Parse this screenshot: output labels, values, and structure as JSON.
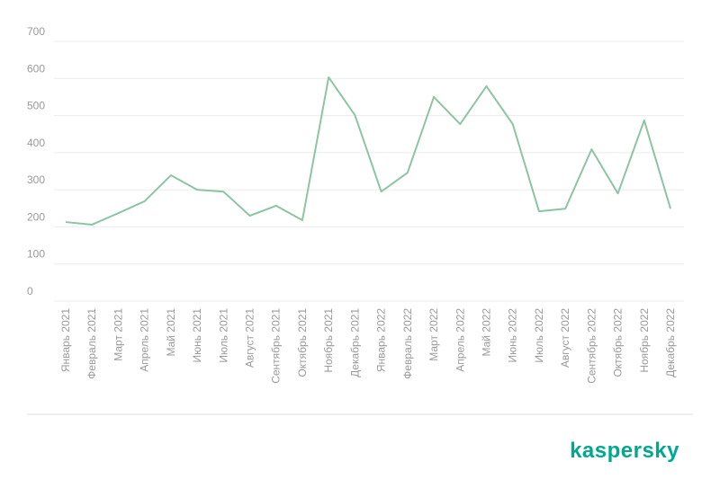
{
  "chart_data": {
    "type": "line",
    "categories": [
      "Январь 2021",
      "Февраль 2021",
      "Март 2021",
      "Апрель 2021",
      "Май 2021",
      "Июнь 2021",
      "Июль 2021",
      "Август 2021",
      "Сентябрь 2021",
      "Октябрь 2021",
      "Ноябрь 2021",
      "Декабрь 2021",
      "Январь 2022",
      "Февраль 2022",
      "Март 2022",
      "Апрель 2022",
      "Май 2022",
      "Июнь 2022",
      "Июль 2022",
      "Август 2022",
      "Сентябрь 2022",
      "Октябрь 2022",
      "Ноябрь 2022",
      "Декабрь 2022"
    ],
    "values": [
      213,
      206,
      237,
      269,
      339,
      300,
      295,
      230,
      257,
      218,
      603,
      501,
      295,
      346,
      550,
      477,
      579,
      477,
      242,
      249,
      409,
      290,
      487,
      249
    ],
    "color": "#8cc4a4",
    "ylim": [
      0,
      700
    ],
    "yticks": [
      0,
      100,
      200,
      300,
      400,
      500,
      600,
      700
    ],
    "grid": true
  },
  "logo": "kaspersky"
}
